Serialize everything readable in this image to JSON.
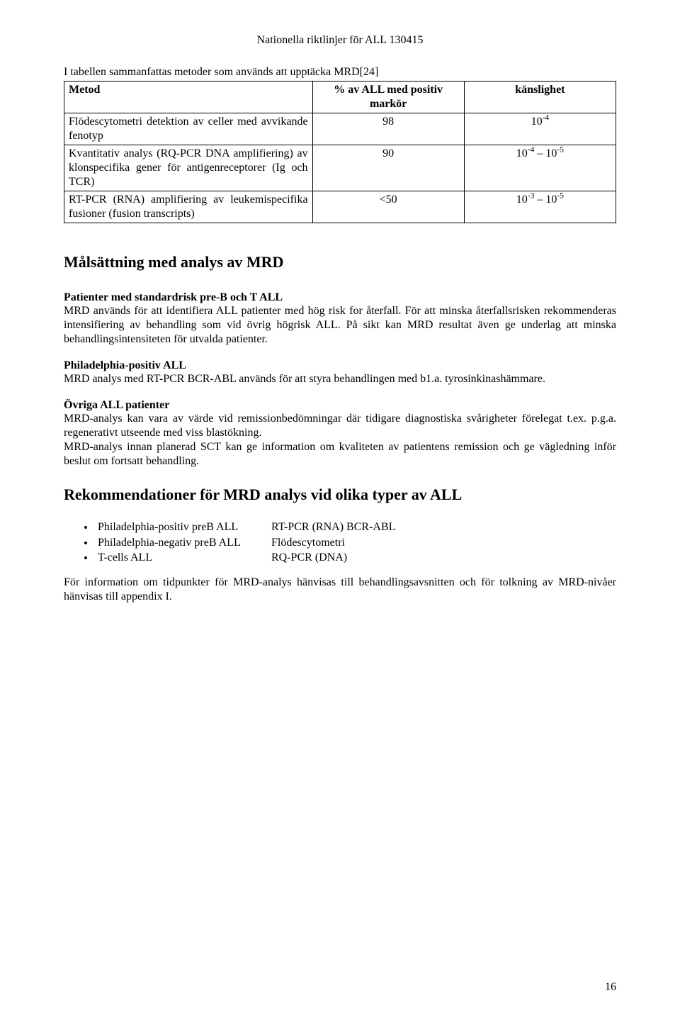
{
  "header": "Nationella riktlinjer för ALL  130415",
  "intro": "I tabellen sammanfattas metoder som används att upptäcka MRD[24]",
  "table": {
    "headers": {
      "method": "Metod",
      "mid": "% av ALL med positiv markör",
      "right": "känslighet"
    },
    "rows": [
      {
        "method": "Flödescytometri detektion av celler med avvikande fenotyp",
        "mid": "98",
        "right_html": "10<sup>-4</sup>"
      },
      {
        "method": "Kvantitativ analys (RQ-PCR DNA amplifiering) av klonspecifika gener för antigenreceptorer (Ig och TCR)",
        "mid": "90",
        "right_html": "10<sup>-4</sup> – 10<sup>-5</sup>"
      },
      {
        "method": "RT-PCR (RNA) amplifiering av leukemispecifika fusioner (fusion transcripts)",
        "mid": "<50",
        "right_html": "10<sup>-3</sup> – 10<sup>-5</sup>"
      }
    ]
  },
  "section1": {
    "title": "Målsättning med analys av MRD",
    "pat_head": "Patienter med standardrisk pre-B och T ALL",
    "pat_body": "MRD används för att identifiera ALL patienter med hög risk for återfall. För att minska återfallsrisken rekommenderas intensifiering av behandling som vid övrig högrisk ALL. På sikt kan MRD resultat även ge underlag att minska behandlingsintensiteten för utvalda patienter.",
    "phil_head": "Philadelphia-positiv ALL",
    "phil_body": "MRD analys med RT-PCR BCR-ABL används för att styra behandlingen med b1.a. tyrosinkinashämmare.",
    "ovr_head": "Övriga ALL patienter",
    "ovr_body1": "MRD-analys kan vara av värde vid remissionbedömningar där tidigare diagnostiska svårigheter förelegat t.ex. p.g.a. regenerativt utseende med viss blastökning.",
    "ovr_body2": "MRD-analys innan planerad SCT kan ge information om kvaliteten av patientens remission och ge vägledning inför beslut om fortsatt behandling."
  },
  "section2": {
    "title": "Rekommendationer för MRD analys vid olika typer av ALL",
    "items": [
      {
        "left": "Philadelphia-positiv preB ALL",
        "right": "RT-PCR (RNA) BCR-ABL"
      },
      {
        "left": "Philadelphia-negativ preB ALL",
        "right": "Flödescytometri"
      },
      {
        "left": "T-cells ALL",
        "right": "RQ-PCR (DNA)"
      }
    ],
    "footer": "För information om tidpunkter för MRD-analys hänvisas till behandlingsavsnitten och för tolkning av MRD-nivåer hänvisas till appendix I."
  },
  "page_number": "16"
}
